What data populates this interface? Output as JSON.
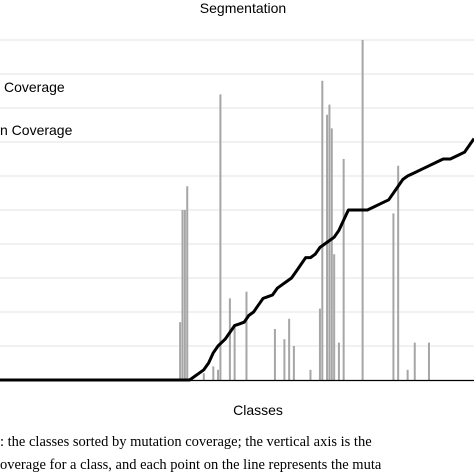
{
  "chart_data": {
    "type": "bar+line",
    "title": "Segmentation",
    "xlabel": "Classes",
    "ylabel": "",
    "legend": {
      "placement": "top-left",
      "entries": [
        "Coverage",
        "n Coverage"
      ]
    },
    "ylim": [
      0,
      1
    ],
    "xlim": [
      0,
      200
    ],
    "grid": "horizontal",
    "gridlines": [
      0.1,
      0.2,
      0.3,
      0.4,
      0.5,
      0.6,
      0.7,
      0.8,
      0.9,
      1.0
    ],
    "series": [
      {
        "kind": "bars",
        "color": "#a6a6a6",
        "points": [
          [
            76,
            0.17
          ],
          [
            77,
            0.5
          ],
          [
            78,
            0.5
          ],
          [
            79,
            0.57
          ],
          [
            86,
            0.02
          ],
          [
            90,
            0.04
          ],
          [
            92,
            0.03
          ],
          [
            93,
            0.84
          ],
          [
            97,
            0.24
          ],
          [
            99,
            0.16
          ],
          [
            104,
            0.26
          ],
          [
            116,
            0.15
          ],
          [
            120,
            0.12
          ],
          [
            122,
            0.18
          ],
          [
            124,
            0.1
          ],
          [
            131,
            0.03
          ],
          [
            135,
            0.21
          ],
          [
            136,
            0.88
          ],
          [
            138,
            0.78
          ],
          [
            139,
            0.81
          ],
          [
            140,
            0.74
          ],
          [
            141,
            0.37
          ],
          [
            143,
            0.11
          ],
          [
            145,
            0.65
          ],
          [
            153,
            1.0
          ],
          [
            166,
            0.49
          ],
          [
            168,
            0.63
          ],
          [
            172,
            0.03
          ],
          [
            175,
            0.11
          ],
          [
            181,
            0.11
          ]
        ]
      },
      {
        "kind": "line",
        "color": "#000000",
        "points": [
          [
            0,
            0
          ],
          [
            80,
            0
          ],
          [
            82,
            0.01
          ],
          [
            84,
            0.02
          ],
          [
            86,
            0.03
          ],
          [
            88,
            0.05
          ],
          [
            90,
            0.08
          ],
          [
            92,
            0.1
          ],
          [
            95,
            0.12
          ],
          [
            97,
            0.14
          ],
          [
            99,
            0.16
          ],
          [
            101,
            0.165
          ],
          [
            103,
            0.17
          ],
          [
            105,
            0.19
          ],
          [
            107,
            0.2
          ],
          [
            109,
            0.22
          ],
          [
            111,
            0.24
          ],
          [
            113,
            0.245
          ],
          [
            115,
            0.25
          ],
          [
            117,
            0.27
          ],
          [
            119,
            0.28
          ],
          [
            121,
            0.29
          ],
          [
            123,
            0.3
          ],
          [
            125,
            0.32
          ],
          [
            127,
            0.34
          ],
          [
            129,
            0.36
          ],
          [
            131,
            0.36
          ],
          [
            133,
            0.37
          ],
          [
            135,
            0.39
          ],
          [
            137,
            0.4
          ],
          [
            139,
            0.41
          ],
          [
            141,
            0.42
          ],
          [
            143,
            0.44
          ],
          [
            145,
            0.47
          ],
          [
            147,
            0.5
          ],
          [
            150,
            0.5
          ],
          [
            152,
            0.5
          ],
          [
            155,
            0.5
          ],
          [
            158,
            0.51
          ],
          [
            161,
            0.52
          ],
          [
            164,
            0.53
          ],
          [
            167,
            0.56
          ],
          [
            170,
            0.59
          ],
          [
            172,
            0.6
          ],
          [
            175,
            0.61
          ],
          [
            178,
            0.62
          ],
          [
            181,
            0.63
          ],
          [
            184,
            0.64
          ],
          [
            187,
            0.65
          ],
          [
            190,
            0.65
          ],
          [
            193,
            0.66
          ],
          [
            196,
            0.67
          ],
          [
            198,
            0.69
          ],
          [
            200,
            0.71
          ]
        ]
      }
    ]
  },
  "caption": {
    "line1": ": the classes sorted by mutation coverage; the vertical axis is the",
    "line2": "overage for a class, and each point on the line represents the muta"
  }
}
